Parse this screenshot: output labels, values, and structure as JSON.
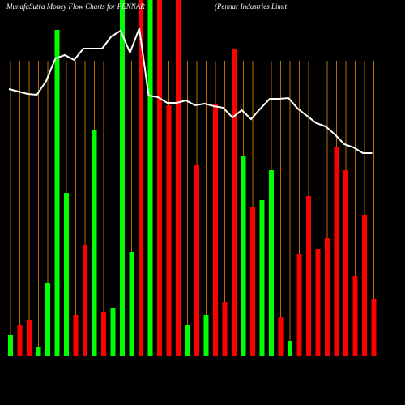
{
  "chart_data": {
    "type": "bar",
    "title": "MunafaSutra  Money Flow  Charts for PENNAR",
    "subtitle": "(Pennar Industries Limit",
    "values": [
      27,
      39,
      45,
      11,
      91,
      403,
      202,
      51,
      138,
      280,
      55,
      60,
      440,
      129,
      440,
      440,
      440,
      310,
      440,
      39,
      236,
      51,
      311,
      67,
      379,
      248,
      184,
      193,
      230,
      49,
      19,
      127,
      198,
      132,
      146,
      259,
      230,
      99,
      174,
      71
    ],
    "colors": [
      "#00ff00",
      "#ff0000",
      "#ff0000",
      "#00ff00",
      "#00ff00",
      "#00ff00",
      "#00ff00",
      "#ff0000",
      "#ff0000",
      "#00ff00",
      "#ff0000",
      "#00ff00",
      "#00ff00",
      "#00ff00",
      "#ff0000",
      "#00ff00",
      "#ff0000",
      "#ff0000",
      "#ff0000",
      "#00ff00",
      "#ff0000",
      "#00ff00",
      "#ff0000",
      "#ff0000",
      "#ff0000",
      "#00ff00",
      "#ff0000",
      "#00ff00",
      "#00ff00",
      "#ff0000",
      "#00ff00",
      "#ff0000",
      "#ff0000",
      "#ff0000",
      "#ff0000",
      "#ff0000",
      "#ff0000",
      "#ff0000",
      "#ff0000",
      "#ff0000"
    ],
    "ylim": [
      0,
      440
    ],
    "line": {
      "color": "#ffffff",
      "axis": "y2",
      "values": [
        330,
        327,
        324,
        323,
        340,
        368,
        372,
        366,
        380,
        380,
        380,
        395,
        402,
        375,
        405,
        322,
        320,
        313,
        313,
        316,
        310,
        312,
        309,
        307,
        295,
        304,
        293,
        306,
        318,
        318,
        319,
        306,
        297,
        288,
        284,
        274,
        262,
        258,
        251,
        251
      ]
    },
    "y2lim": [
      0,
      440
    ],
    "grid_color": "#b86b00"
  }
}
